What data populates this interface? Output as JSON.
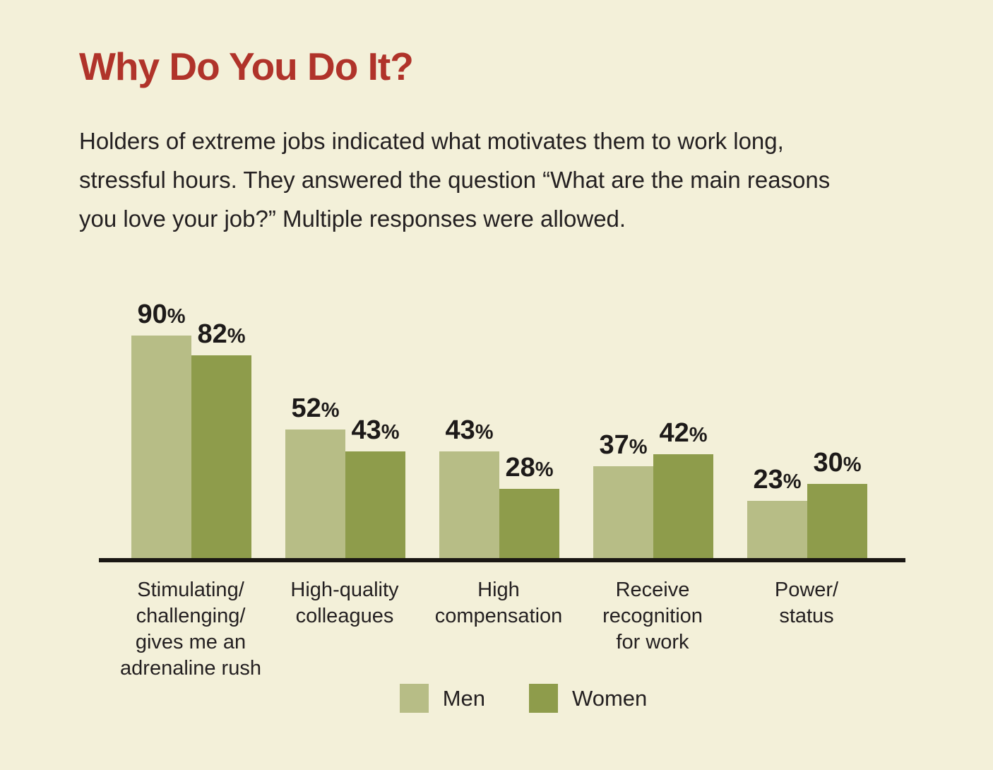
{
  "page": {
    "title": "Why Do You Do It?",
    "description_lines": [
      "Holders of extreme jobs indicated what motivates them to work long,",
      "stressful hours. They answered the question “What are the main reasons",
      "you love your job?” Multiple responses were allowed."
    ],
    "background_color": "#f3f0d9",
    "title_color": "#b0332a",
    "text_color": "#231f20"
  },
  "chart_data": {
    "type": "bar",
    "title": "Why Do You Do It?",
    "categories": [
      "Stimulating/challenging/gives me an adrenaline rush",
      "High-quality colleagues",
      "High compensation",
      "Receive recognition for work",
      "Power/status"
    ],
    "category_lines": [
      [
        "Stimulating/",
        "challenging/",
        "gives me an",
        "adrenaline rush"
      ],
      [
        "High-quality",
        "colleagues"
      ],
      [
        "High",
        "compensation"
      ],
      [
        "Receive",
        "recognition",
        "for work"
      ],
      [
        "Power/",
        "status"
      ]
    ],
    "series": [
      {
        "name": "Men",
        "color": "#b7bd86",
        "values": [
          90,
          52,
          43,
          37,
          23
        ]
      },
      {
        "name": "Women",
        "color": "#8e9c4b",
        "values": [
          82,
          43,
          28,
          42,
          30
        ]
      }
    ],
    "value_suffix": "%",
    "ylim": [
      0,
      100
    ],
    "grid": false,
    "legend_position": "bottom",
    "axis_line_color": "#1a1713"
  }
}
